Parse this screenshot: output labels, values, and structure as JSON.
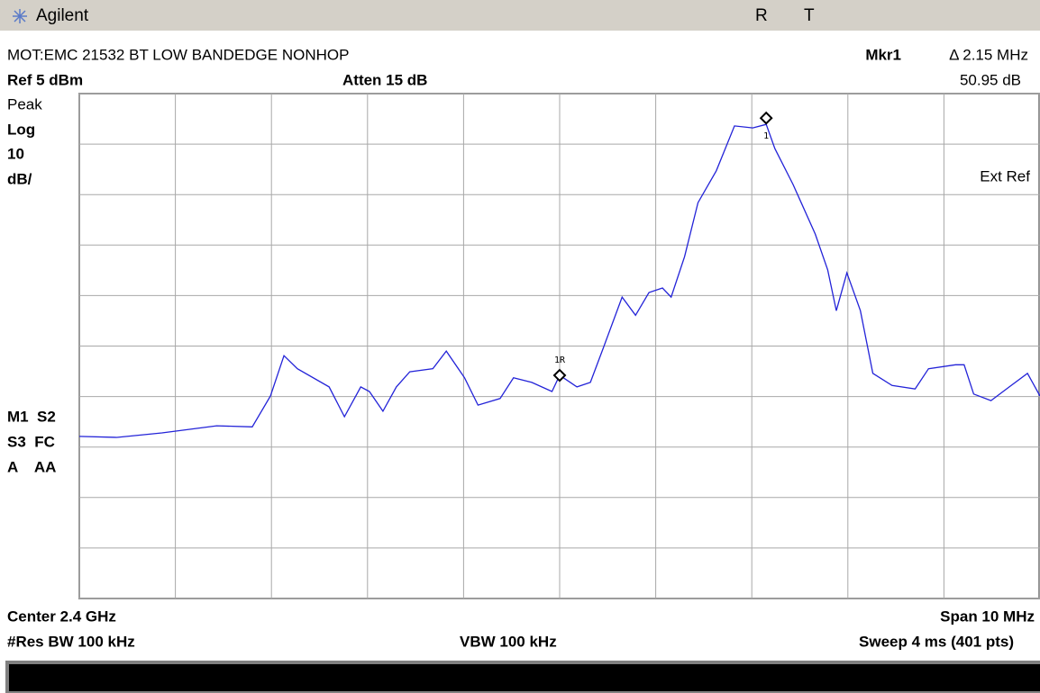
{
  "screen": {
    "brand": "Agilent",
    "status_r": "R",
    "status_t": "T",
    "screen_title": "MOT:EMC 21532 BT LOW BANDEDGE NONHOP",
    "marker_name": "Mkr1",
    "marker_delta": "Δ 2.15 MHz",
    "marker_amplitude": "50.95 dB",
    "ref_level": "Ref 5 dBm",
    "attenuation": "Atten 15 dB",
    "detector": "Peak",
    "scale_type": "Log",
    "scale_value": "10",
    "scale_unit": "dB/",
    "ext_ref": "Ext Ref",
    "side_1": "M1  S2",
    "side_2": "S3  FC",
    "side_3": "A    AA",
    "center": "Center 2.4 GHz",
    "span": "Span 10 MHz",
    "rbw": "#Res BW 100 kHz",
    "vbw": "VBW 100 kHz",
    "sweep": "Sweep 4 ms (401 pts)"
  },
  "chart_data": {
    "type": "line",
    "color": "#2323d8",
    "grid": true,
    "xlim": [
      2395,
      2405
    ],
    "ylim": [
      -95,
      5
    ],
    "xticks": [
      2395,
      2396,
      2397,
      2398,
      2399,
      2400,
      2401,
      2402,
      2403,
      2404,
      2405
    ],
    "yticks": [
      5,
      -5,
      -15,
      -25,
      -35,
      -45,
      -55,
      -65,
      -75,
      -85,
      -95
    ],
    "x": [
      2395.0,
      2395.39,
      2395.86,
      2396.43,
      2396.8,
      2396.99,
      2397.13,
      2397.27,
      2397.6,
      2397.76,
      2397.93,
      2398.02,
      2398.16,
      2398.3,
      2398.44,
      2398.68,
      2398.82,
      2399.01,
      2399.15,
      2399.38,
      2399.52,
      2399.71,
      2399.92,
      2400.0,
      2400.18,
      2400.32,
      2400.46,
      2400.65,
      2400.79,
      2400.93,
      2401.07,
      2401.16,
      2401.3,
      2401.44,
      2401.63,
      2401.82,
      2402.01,
      2402.15,
      2402.24,
      2402.43,
      2402.66,
      2402.79,
      2402.88,
      2402.99,
      2403.13,
      2403.26,
      2403.46,
      2403.7,
      2403.84,
      2404.12,
      2404.21,
      2404.31,
      2404.49,
      2404.68,
      2404.87,
      2405.0
    ],
    "values": [
      -62.9,
      -63.1,
      -62.2,
      -60.8,
      -61.0,
      -54.9,
      -46.9,
      -49.5,
      -53.1,
      -59.0,
      -53.1,
      -54.0,
      -57.9,
      -53.1,
      -50.1,
      -49.5,
      -46.0,
      -51.3,
      -56.7,
      -55.4,
      -51.3,
      -52.2,
      -54.0,
      -50.8,
      -53.1,
      -52.2,
      -45.1,
      -35.3,
      -38.9,
      -34.4,
      -33.5,
      -35.3,
      -27.3,
      -16.6,
      -10.3,
      -1.4,
      -1.8,
      -1.1,
      -5.9,
      -13.0,
      -22.8,
      -29.9,
      -38.0,
      -30.5,
      -38.0,
      -50.4,
      -52.8,
      -53.5,
      -49.5,
      -48.7,
      -48.7,
      -54.5,
      -55.8,
      -53.1,
      -50.4,
      -54.9
    ],
    "markers": [
      {
        "label": "1R",
        "x": 2400,
        "value": -50.8
      },
      {
        "label": "1",
        "x": 2402.15,
        "value": 0.15
      }
    ]
  }
}
